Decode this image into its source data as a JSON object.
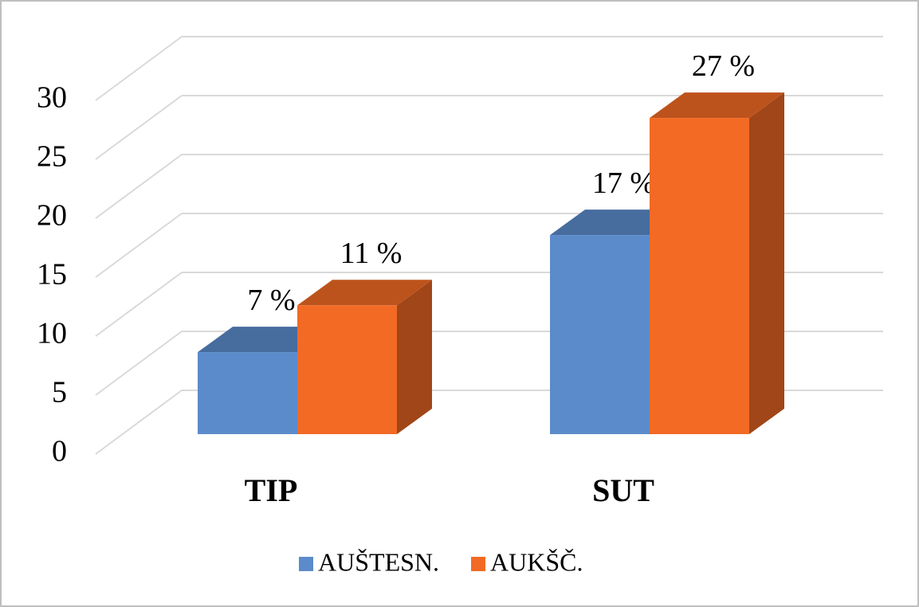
{
  "chart_data": {
    "type": "bar3d",
    "categories": [
      "TIP",
      "SUT"
    ],
    "series": [
      {
        "name": "AUŠTESN.",
        "color": "#5b8bca",
        "values": [
          7,
          17
        ],
        "value_labels": [
          "7 %",
          "17 %"
        ]
      },
      {
        "name": "AUKŠČ.",
        "color": "#f26a24",
        "values": [
          11,
          27
        ],
        "value_labels": [
          "11 %",
          "27 %"
        ]
      }
    ],
    "ylim": [
      0,
      30
    ],
    "yticks": [
      0,
      5,
      10,
      15,
      20,
      25,
      30
    ],
    "grid": true,
    "legend": "bottom"
  }
}
